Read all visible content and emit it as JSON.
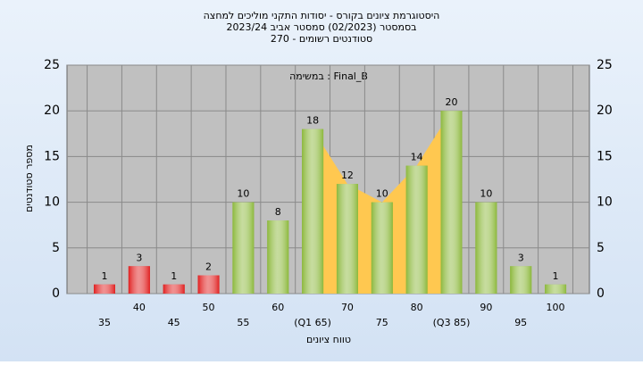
{
  "chart_data": {
    "type": "bar",
    "title": [
      "היסטוגרמת ציונים בקורס - יסודות התקני מוליכים למחצה",
      "בסמסטר  (02/2023)  סמסטר אביב 2023/24",
      "סטודנטים רשומים - 270"
    ],
    "annotation": "במשימה : Final_B",
    "x_label": "טווח ציונים",
    "y_label": "מספר סטודנטים",
    "categories": [
      "35",
      "40",
      "45",
      "50",
      "55",
      "60",
      "(Q1 65)",
      "70",
      "75",
      "80",
      "(Q3 85)",
      "90",
      "95",
      "100"
    ],
    "values": [
      1,
      3,
      1,
      2,
      10,
      8,
      18,
      12,
      10,
      14,
      20,
      10,
      3,
      1
    ],
    "colors": [
      "#e02020",
      "#e02020",
      "#e02020",
      "#e02020",
      "#8cb83c",
      "#8cb83c",
      "#8cb83c",
      "#8cb83c",
      "#8cb83c",
      "#8cb83c",
      "#8cb83c",
      "#8cb83c",
      "#8cb83c",
      "#8cb83c"
    ],
    "quartile_fill": "#ffc850",
    "ylim": [
      0,
      25
    ],
    "yticks": [
      0,
      5,
      10,
      15,
      20,
      25
    ],
    "grid": true
  }
}
